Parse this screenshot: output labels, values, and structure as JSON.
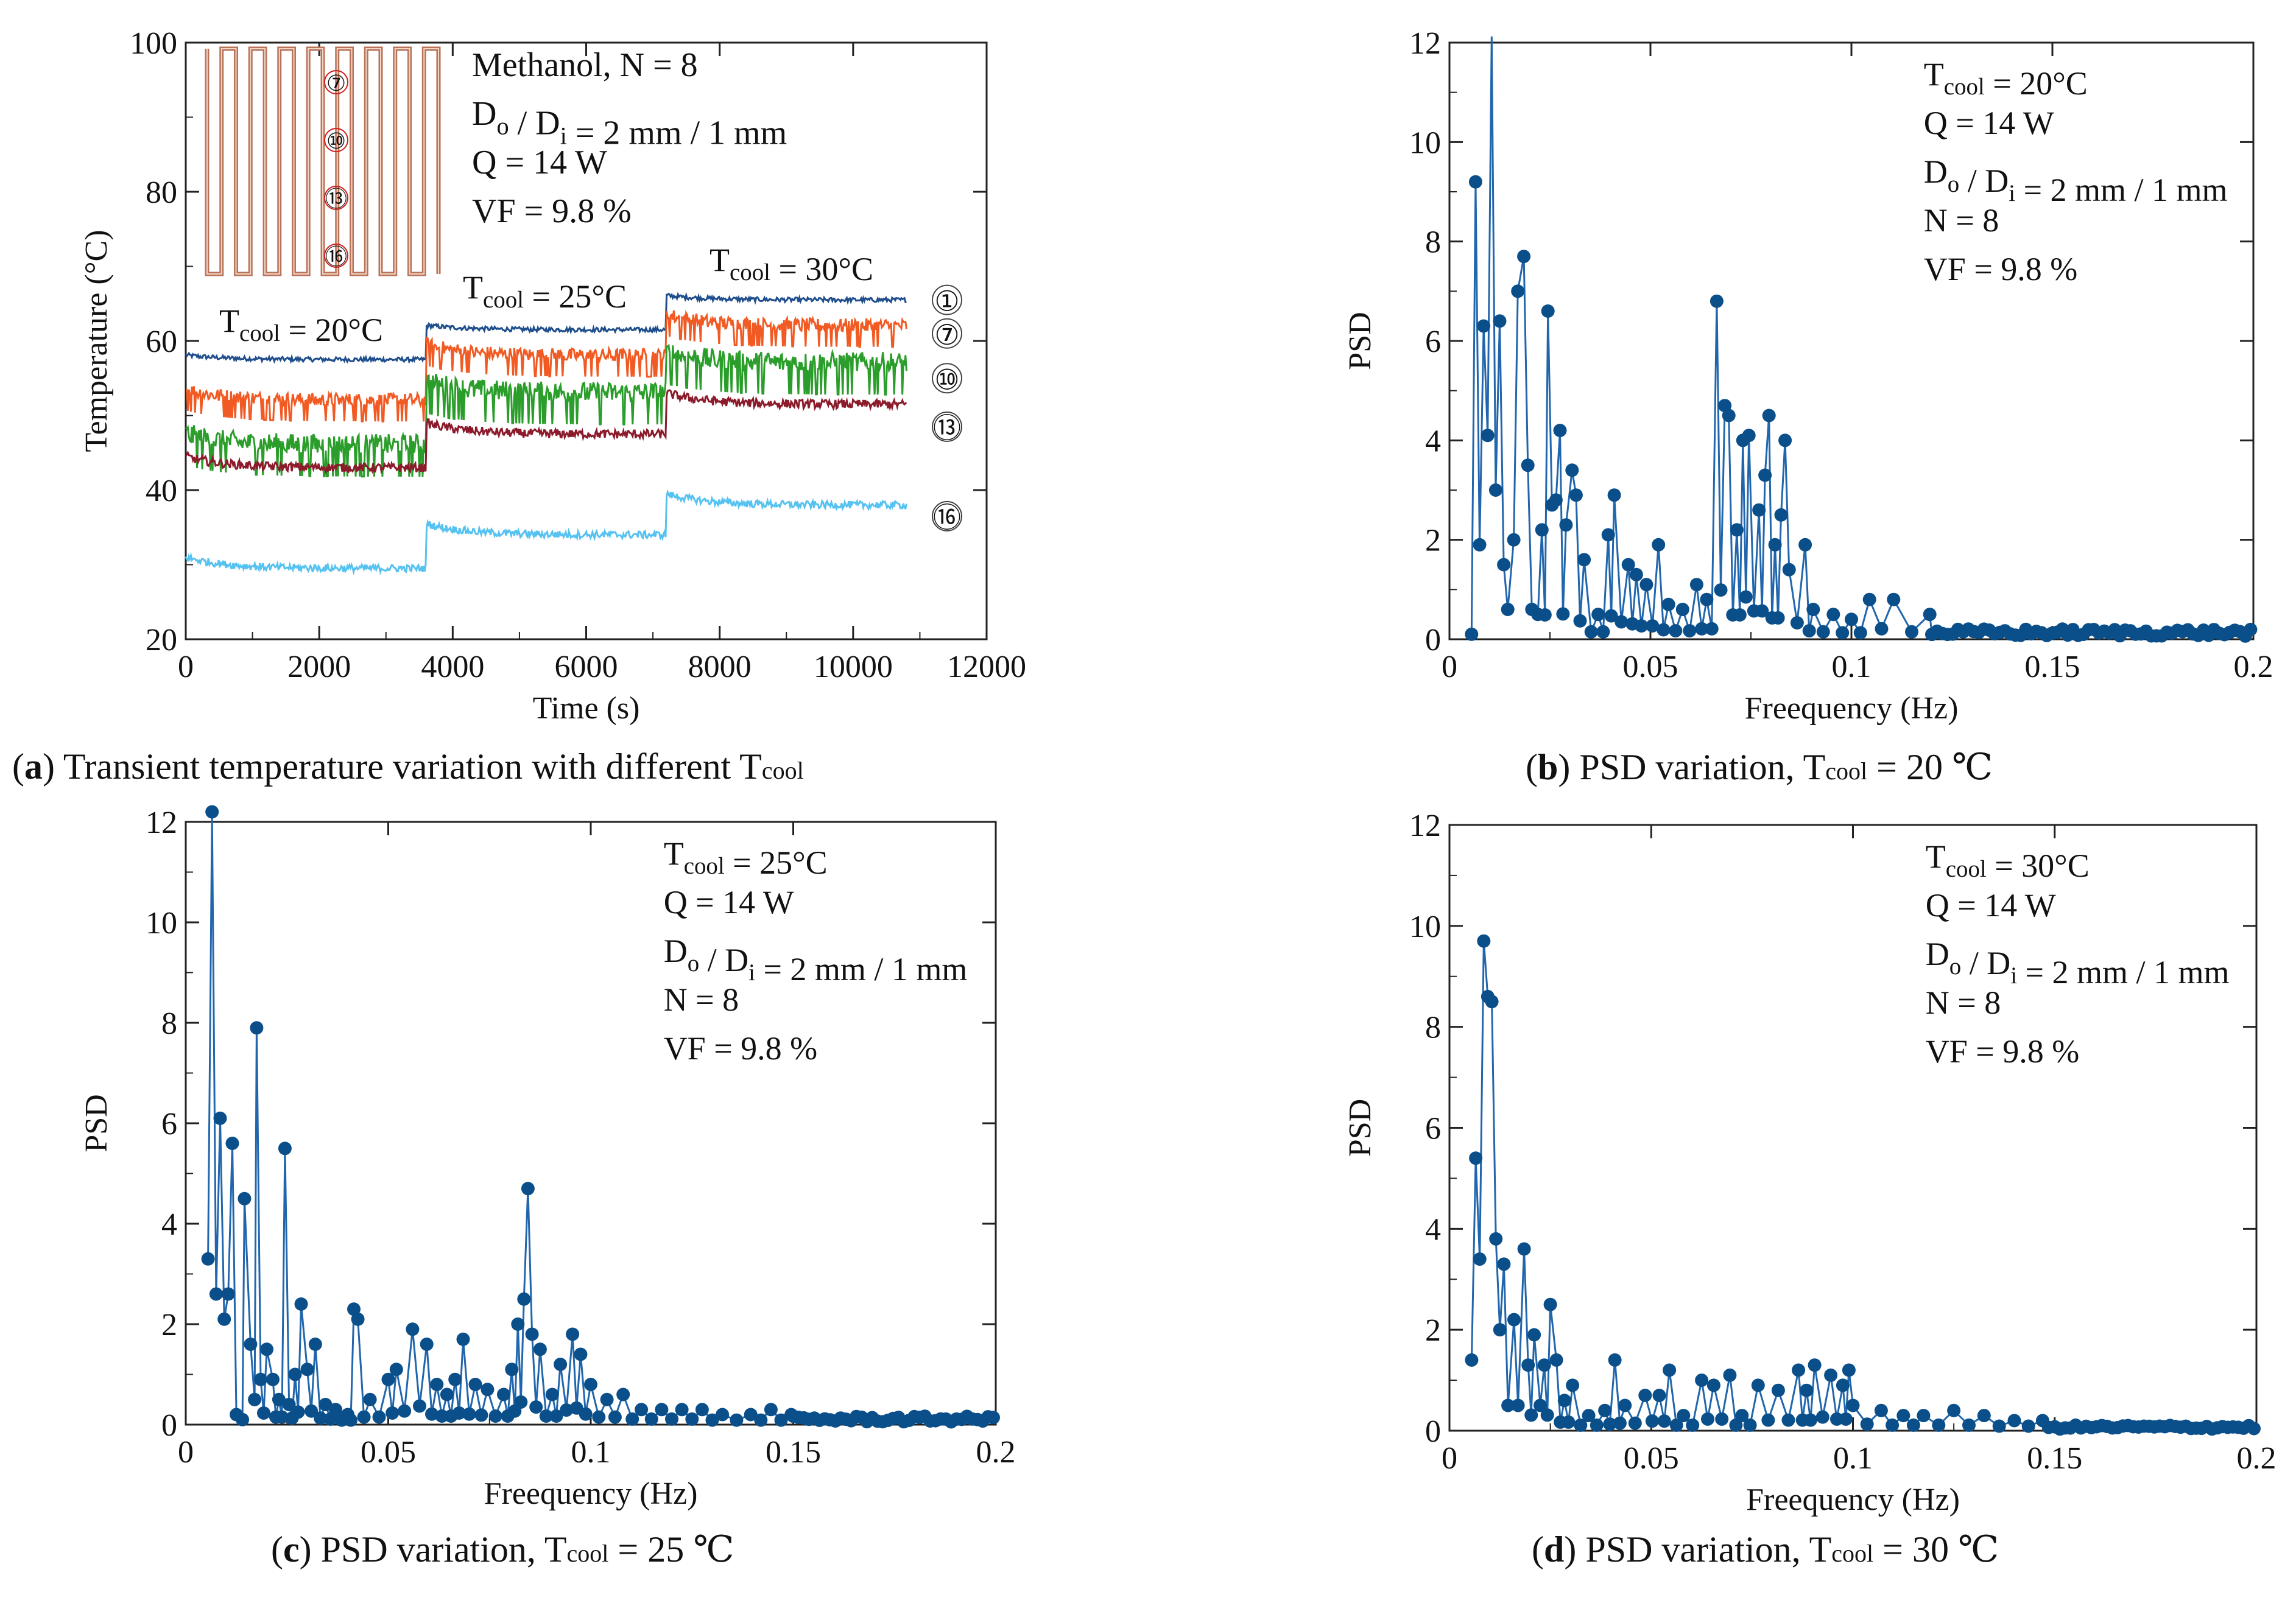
{
  "figure": {
    "captions": [
      {
        "letter": "a",
        "text": "Transient temperature variation with different T",
        "sub": "cool",
        "tail": ""
      },
      {
        "letter": "b",
        "text": "PSD variation, T",
        "sub": "cool",
        "tail": " = 20 ℃"
      },
      {
        "letter": "c",
        "text": "PSD variation, T",
        "sub": "cool",
        "tail": " = 25 ℃"
      },
      {
        "letter": "d",
        "text": "PSD variation, T",
        "sub": "cool",
        "tail": " = 30 ℃"
      }
    ]
  },
  "chart_data": [
    {
      "id": "a",
      "type": "line",
      "title": "",
      "xlabel": "Time (s)",
      "ylabel": "Temperature (°C)",
      "xlim": [
        0,
        12000
      ],
      "ylim": [
        20,
        100
      ],
      "xticks": [
        "0",
        "2000",
        "4000",
        "6000",
        "8000",
        "10000",
        "12000"
      ],
      "yticks": [
        "20",
        "40",
        "60",
        "80",
        "100"
      ],
      "annotations": [
        "Methanol,  N = 8",
        "Do / Di = 2 mm / 1 mm",
        "Q = 14 W",
        "VF = 9.8 %"
      ],
      "stage_labels": [
        "Tcool = 20°C",
        "Tcool = 25°C",
        "Tcool = 30°C"
      ],
      "stage_bounds_s": [
        0,
        3600,
        7200,
        10800
      ],
      "inset_markers": [
        "⑦",
        "⑩",
        "⑬",
        "⑯"
      ],
      "series": [
        {
          "name": "①",
          "color": "#1f4e8c",
          "stage_means": [
            57.5,
            61.5,
            65.5
          ],
          "noise": 0.6
        },
        {
          "name": "⑦",
          "color": "#f15a22",
          "stage_means": [
            52.0,
            58.0,
            62.0
          ],
          "noise": 2.0
        },
        {
          "name": "⑩",
          "color": "#2a9d2a",
          "stage_means": [
            46.0,
            53.0,
            57.0
          ],
          "noise": 3.0
        },
        {
          "name": "⑬",
          "color": "#8b1a2b",
          "stage_means": [
            43.0,
            47.5,
            51.5
          ],
          "noise": 1.2
        },
        {
          "name": "⑯",
          "color": "#56c2f0",
          "stage_means": [
            29.5,
            34.0,
            38.0
          ],
          "noise": 1.0
        }
      ]
    },
    {
      "id": "b",
      "type": "line",
      "xlabel": "Freequency (Hz)",
      "ylabel": "PSD",
      "xlim": [
        0,
        0.2
      ],
      "ylim": [
        0,
        12
      ],
      "xticks": [
        "0",
        "0.05",
        "0.1",
        "0.15",
        "0.2"
      ],
      "yticks": [
        "0",
        "2",
        "4",
        "6",
        "8",
        "10",
        "12"
      ],
      "annotations": [
        "Tcool = 20°C",
        "Q = 14 W",
        "Do / Di = 2 mm / 1 mm",
        "N = 8",
        "VF = 9.8 %"
      ],
      "peaks": [
        [
          0.0055,
          0.1
        ],
        [
          0.0065,
          9.2
        ],
        [
          0.0075,
          1.9
        ],
        [
          0.0085,
          6.3
        ],
        [
          0.0095,
          4.1
        ],
        [
          0.0105,
          12.5
        ],
        [
          0.0115,
          3.0
        ],
        [
          0.0125,
          6.4
        ],
        [
          0.0135,
          1.5
        ],
        [
          0.0145,
          0.6
        ],
        [
          0.016,
          2.0
        ],
        [
          0.017,
          7.0
        ],
        [
          0.0185,
          7.7
        ],
        [
          0.0195,
          3.5
        ],
        [
          0.0205,
          0.6
        ],
        [
          0.022,
          0.5
        ],
        [
          0.023,
          2.2
        ],
        [
          0.0245,
          6.6
        ],
        [
          0.0255,
          2.7
        ],
        [
          0.0265,
          2.8
        ],
        [
          0.0275,
          4.2
        ],
        [
          0.029,
          2.3
        ],
        [
          0.0305,
          3.4
        ],
        [
          0.0315,
          2.9
        ],
        [
          0.0335,
          1.6
        ],
        [
          0.037,
          0.5
        ],
        [
          0.0395,
          2.1
        ],
        [
          0.041,
          2.9
        ],
        [
          0.0445,
          1.5
        ],
        [
          0.0465,
          1.3
        ],
        [
          0.049,
          1.1
        ],
        [
          0.052,
          1.9
        ],
        [
          0.0545,
          0.7
        ],
        [
          0.058,
          0.6
        ],
        [
          0.0615,
          1.1
        ],
        [
          0.064,
          0.8
        ],
        [
          0.0665,
          6.8
        ],
        [
          0.0685,
          4.7
        ],
        [
          0.0695,
          4.5
        ],
        [
          0.0715,
          2.2
        ],
        [
          0.073,
          4.0
        ],
        [
          0.0745,
          4.1
        ],
        [
          0.077,
          2.6
        ],
        [
          0.0785,
          3.3
        ],
        [
          0.0795,
          4.5
        ],
        [
          0.081,
          1.9
        ],
        [
          0.0825,
          2.5
        ],
        [
          0.0835,
          4.0
        ],
        [
          0.0845,
          1.4
        ],
        [
          0.0885,
          1.9
        ],
        [
          0.0905,
          0.6
        ],
        [
          0.0955,
          0.5
        ],
        [
          0.1,
          0.4
        ],
        [
          0.1045,
          0.8
        ],
        [
          0.1105,
          0.8
        ],
        [
          0.1195,
          0.5
        ]
      ],
      "tail_from": 0.12,
      "tail_level": 0.15
    },
    {
      "id": "c",
      "type": "line",
      "xlabel": "Freequency (Hz)",
      "ylabel": "PSD",
      "xlim": [
        0,
        0.2
      ],
      "ylim": [
        0,
        12
      ],
      "xticks": [
        "0",
        "0.05",
        "0.1",
        "0.15",
        "0.2"
      ],
      "yticks": [
        "0",
        "2",
        "4",
        "6",
        "8",
        "10",
        "12"
      ],
      "annotations": [
        "Tcool = 25°C",
        "Q = 14 W",
        "Do / Di = 2 mm / 1 mm",
        "N = 8",
        "VF = 9.8 %"
      ],
      "peaks": [
        [
          0.0055,
          3.3
        ],
        [
          0.0065,
          12.2
        ],
        [
          0.0075,
          2.6
        ],
        [
          0.0085,
          6.1
        ],
        [
          0.0095,
          2.1
        ],
        [
          0.0105,
          2.6
        ],
        [
          0.0115,
          5.6
        ],
        [
          0.0125,
          0.2
        ],
        [
          0.014,
          0.1
        ],
        [
          0.0145,
          4.5
        ],
        [
          0.016,
          1.6
        ],
        [
          0.017,
          0.5
        ],
        [
          0.0175,
          7.9
        ],
        [
          0.0185,
          0.9
        ],
        [
          0.02,
          1.5
        ],
        [
          0.0215,
          0.9
        ],
        [
          0.023,
          0.5
        ],
        [
          0.0245,
          5.5
        ],
        [
          0.0255,
          0.4
        ],
        [
          0.027,
          1.0
        ],
        [
          0.0285,
          2.4
        ],
        [
          0.03,
          1.1
        ],
        [
          0.032,
          1.6
        ],
        [
          0.0345,
          0.4
        ],
        [
          0.037,
          0.3
        ],
        [
          0.04,
          0.2
        ],
        [
          0.0415,
          2.3
        ],
        [
          0.0425,
          2.1
        ],
        [
          0.0455,
          0.5
        ],
        [
          0.05,
          0.9
        ],
        [
          0.052,
          1.1
        ],
        [
          0.056,
          1.9
        ],
        [
          0.0595,
          1.6
        ],
        [
          0.062,
          0.8
        ],
        [
          0.0645,
          0.6
        ],
        [
          0.0665,
          0.9
        ],
        [
          0.0685,
          1.7
        ],
        [
          0.0715,
          0.8
        ],
        [
          0.0745,
          0.7
        ],
        [
          0.0785,
          0.6
        ],
        [
          0.0805,
          1.1
        ],
        [
          0.082,
          2.0
        ],
        [
          0.0835,
          2.5
        ],
        [
          0.0845,
          4.7
        ],
        [
          0.0855,
          1.8
        ],
        [
          0.0875,
          1.5
        ],
        [
          0.0905,
          0.6
        ],
        [
          0.0925,
          1.2
        ],
        [
          0.0955,
          1.8
        ],
        [
          0.0975,
          1.4
        ],
        [
          0.1,
          0.8
        ],
        [
          0.104,
          0.5
        ],
        [
          0.108,
          0.6
        ],
        [
          0.1125,
          0.3
        ],
        [
          0.1175,
          0.3
        ],
        [
          0.1225,
          0.3
        ],
        [
          0.1275,
          0.3
        ],
        [
          0.1325,
          0.2
        ],
        [
          0.1395,
          0.2
        ],
        [
          0.1445,
          0.3
        ],
        [
          0.1495,
          0.2
        ]
      ],
      "tail_from": 0.15,
      "tail_level": 0.12
    },
    {
      "id": "d",
      "type": "line",
      "xlabel": "Freequency (Hz)",
      "ylabel": "PSD",
      "xlim": [
        0,
        0.2
      ],
      "ylim": [
        0,
        12
      ],
      "xticks": [
        "0",
        "0.05",
        "0.1",
        "0.15",
        "0.2"
      ],
      "yticks": [
        "0",
        "2",
        "4",
        "6",
        "8",
        "10",
        "12"
      ],
      "annotations": [
        "Tcool = 30°C",
        "Q = 14 W",
        "Do / Di = 2 mm / 1 mm",
        "N = 8",
        "VF = 9.8 %"
      ],
      "peaks": [
        [
          0.0055,
          1.4
        ],
        [
          0.0065,
          5.4
        ],
        [
          0.0075,
          3.4
        ],
        [
          0.0085,
          9.7
        ],
        [
          0.0095,
          8.6
        ],
        [
          0.0105,
          8.5
        ],
        [
          0.0115,
          3.8
        ],
        [
          0.0125,
          2.0
        ],
        [
          0.0135,
          3.3
        ],
        [
          0.0145,
          0.5
        ],
        [
          0.016,
          2.2
        ],
        [
          0.017,
          0.5
        ],
        [
          0.0185,
          3.6
        ],
        [
          0.0195,
          1.3
        ],
        [
          0.021,
          1.9
        ],
        [
          0.0225,
          0.5
        ],
        [
          0.0235,
          1.3
        ],
        [
          0.025,
          2.5
        ],
        [
          0.0265,
          1.4
        ],
        [
          0.0285,
          0.6
        ],
        [
          0.0305,
          0.9
        ],
        [
          0.0345,
          0.3
        ],
        [
          0.0385,
          0.4
        ],
        [
          0.041,
          1.4
        ],
        [
          0.0435,
          0.5
        ],
        [
          0.0485,
          0.7
        ],
        [
          0.052,
          0.7
        ],
        [
          0.0545,
          1.2
        ],
        [
          0.058,
          0.3
        ],
        [
          0.0625,
          1.0
        ],
        [
          0.0655,
          0.9
        ],
        [
          0.0695,
          1.1
        ],
        [
          0.0725,
          0.3
        ],
        [
          0.0765,
          0.9
        ],
        [
          0.0815,
          0.8
        ],
        [
          0.0865,
          1.2
        ],
        [
          0.0885,
          0.8
        ],
        [
          0.0905,
          1.3
        ],
        [
          0.0945,
          1.1
        ],
        [
          0.0975,
          0.9
        ],
        [
          0.099,
          1.2
        ],
        [
          0.1,
          0.5
        ],
        [
          0.107,
          0.4
        ],
        [
          0.1125,
          0.3
        ],
        [
          0.1175,
          0.3
        ],
        [
          0.125,
          0.4
        ],
        [
          0.1325,
          0.3
        ],
        [
          0.14,
          0.2
        ],
        [
          0.147,
          0.2
        ]
      ],
      "tail_from": 0.15,
      "tail_level": 0.08
    }
  ]
}
